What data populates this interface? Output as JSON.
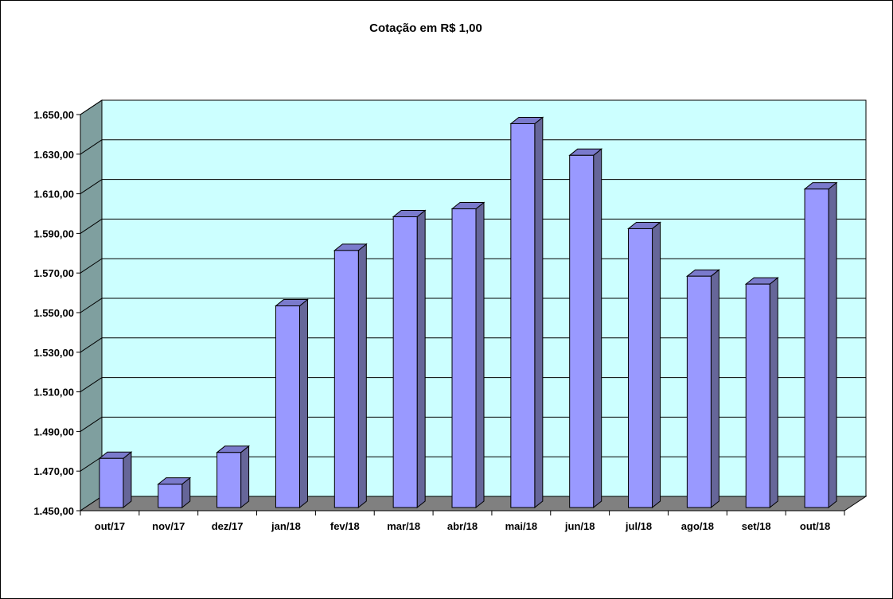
{
  "chart_data": {
    "type": "bar",
    "title": "Cotação em R$ 1,00",
    "xlabel": "",
    "ylabel": "",
    "categories": [
      "out/17",
      "nov/17",
      "dez/17",
      "jan/18",
      "fev/18",
      "mar/18",
      "abr/18",
      "mai/18",
      "jun/18",
      "jul/18",
      "ago/18",
      "set/18",
      "out/18"
    ],
    "values": [
      1478,
      1465,
      1481,
      1555,
      1583,
      1600,
      1604,
      1647,
      1631,
      1594,
      1570,
      1566,
      1614
    ],
    "ylim": [
      1450,
      1650
    ],
    "yticks": [
      1450,
      1470,
      1490,
      1510,
      1530,
      1550,
      1570,
      1590,
      1610,
      1630,
      1650
    ],
    "ytick_labels": [
      "1.450,00",
      "1.470,00",
      "1.490,00",
      "1.510,00",
      "1.530,00",
      "1.550,00",
      "1.570,00",
      "1.590,00",
      "1.610,00",
      "1.630,00",
      "1.650,00"
    ],
    "grid": true,
    "legend": "none",
    "style": "3d-column",
    "colors": {
      "bar_front": "#9999ff",
      "bar_side": "#666699",
      "bar_top": "#7a7acc",
      "back_wall": "#ccffff",
      "side_wall": "#7f9f9f",
      "floor": "#808080",
      "gridline": "#000000"
    }
  }
}
